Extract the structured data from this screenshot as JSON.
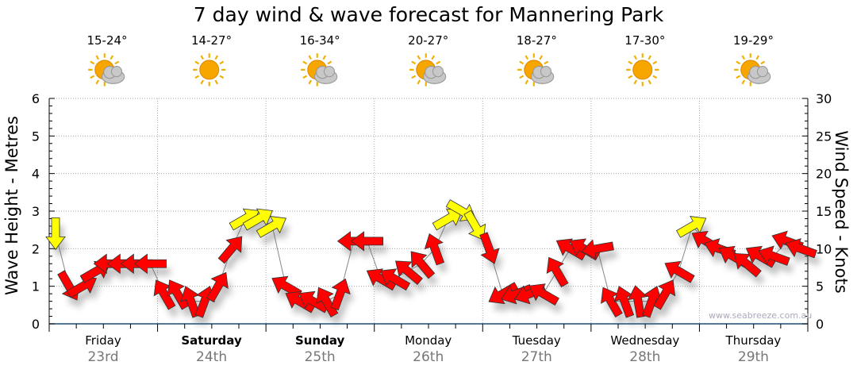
{
  "title": "7 day wind & wave forecast for Mannering Park",
  "watermark": "www.seabreeze.com.au",
  "days": [
    {
      "name": "Friday",
      "date": "23rd",
      "temp": "15-24°",
      "icon": "sun-cloud-icon",
      "bold": false
    },
    {
      "name": "Saturday",
      "date": "24th",
      "temp": "14-27°",
      "icon": "sun-icon",
      "bold": true
    },
    {
      "name": "Sunday",
      "date": "25th",
      "temp": "16-34°",
      "icon": "sun-cloud-icon",
      "bold": true
    },
    {
      "name": "Monday",
      "date": "26th",
      "temp": "20-27°",
      "icon": "sun-cloud-icon",
      "bold": false
    },
    {
      "name": "Tuesday",
      "date": "27th",
      "temp": "18-27°",
      "icon": "sun-cloud-icon",
      "bold": false
    },
    {
      "name": "Wednesday",
      "date": "28th",
      "temp": "17-30°",
      "icon": "sun-icon",
      "bold": false
    },
    {
      "name": "Thursday",
      "date": "29th",
      "temp": "19-29°",
      "icon": "sun-cloud-icon",
      "bold": false
    }
  ],
  "chart_data": {
    "type": "scatter",
    "title": "7 day wind & wave forecast for Mannering Park",
    "ylabel": "Wave Height - Metres",
    "y2label": "Wind Speed - Knots",
    "ylim": [
      0,
      6
    ],
    "y2lim": [
      0,
      30
    ],
    "yticks": [
      "0",
      "1",
      "2",
      "3",
      "4",
      "5",
      "6"
    ],
    "y2ticks": [
      "0",
      "5",
      "10",
      "15",
      "20",
      "25",
      "30"
    ],
    "grid": true,
    "hours_per_point": 3,
    "colors": {
      "light": "#ffff00",
      "strong": "#ff0000",
      "line": "#888888"
    },
    "wind_knots": [
      12,
      5,
      5,
      7,
      8,
      8,
      8,
      8,
      4,
      4,
      3,
      3,
      5,
      10,
      14,
      14,
      13,
      5,
      3,
      3,
      3,
      4,
      11,
      11,
      6,
      6,
      7,
      8,
      10,
      14,
      15,
      13,
      10,
      4,
      4,
      4,
      4,
      7,
      10,
      10,
      10,
      3,
      3,
      3,
      3,
      4,
      7,
      13,
      11,
      10,
      9,
      8,
      9,
      9,
      11,
      10
    ],
    "wind_dir_deg": [
      180,
      150,
      60,
      60,
      270,
      270,
      270,
      270,
      330,
      330,
      340,
      20,
      30,
      40,
      60,
      60,
      60,
      300,
      300,
      300,
      330,
      20,
      270,
      270,
      300,
      300,
      310,
      320,
      340,
      60,
      120,
      150,
      160,
      240,
      250,
      250,
      300,
      330,
      300,
      300,
      260,
      330,
      340,
      350,
      20,
      30,
      300,
      60,
      300,
      290,
      300,
      310,
      300,
      290,
      290,
      290
    ],
    "color_class": [
      "light",
      "strong",
      "strong",
      "strong",
      "strong",
      "strong",
      "strong",
      "strong",
      "strong",
      "strong",
      "strong",
      "strong",
      "strong",
      "strong",
      "light",
      "light",
      "light",
      "strong",
      "strong",
      "strong",
      "strong",
      "strong",
      "strong",
      "strong",
      "strong",
      "strong",
      "strong",
      "strong",
      "strong",
      "light",
      "light",
      "light",
      "strong",
      "strong",
      "strong",
      "strong",
      "strong",
      "strong",
      "strong",
      "strong",
      "strong",
      "strong",
      "strong",
      "strong",
      "strong",
      "strong",
      "strong",
      "light",
      "strong",
      "strong",
      "strong",
      "strong",
      "strong",
      "strong",
      "strong",
      "strong"
    ]
  }
}
